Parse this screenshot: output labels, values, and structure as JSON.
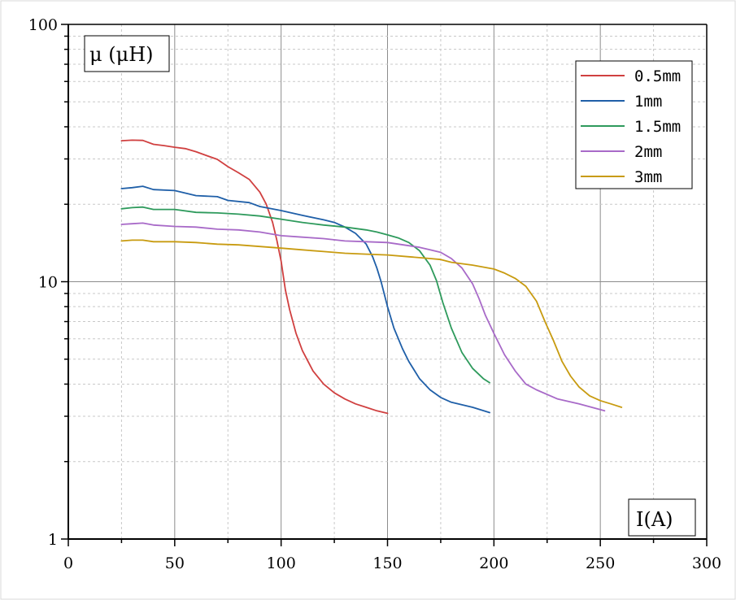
{
  "chart_data": {
    "type": "line",
    "ylabel": "μ (μH)",
    "xlabel": "I(A)",
    "x_scale": "linear",
    "y_scale": "log",
    "xlim": [
      0,
      300
    ],
    "ylim": [
      1,
      100
    ],
    "x_ticks": [
      "0",
      "50",
      "100",
      "150",
      "200",
      "250",
      "300"
    ],
    "y_ticks": [
      "1",
      "10",
      "100"
    ],
    "legend_position": "top-right",
    "grid": true,
    "series": [
      {
        "name": "0.5mm",
        "color": "#d04040",
        "points": [
          [
            25,
            35.3
          ],
          [
            30,
            35.5
          ],
          [
            35,
            35.4
          ],
          [
            40,
            34.2
          ],
          [
            45,
            33.8
          ],
          [
            50,
            33.3
          ],
          [
            55,
            32.9
          ],
          [
            60,
            32.0
          ],
          [
            65,
            30.9
          ],
          [
            70,
            29.9
          ],
          [
            75,
            28.0
          ],
          [
            80,
            26.5
          ],
          [
            85,
            25.0
          ],
          [
            90,
            22.3
          ],
          [
            93,
            20.0
          ],
          [
            96,
            17.0
          ],
          [
            98,
            14.5
          ],
          [
            100,
            12.0
          ],
          [
            102,
            9.3
          ],
          [
            104,
            7.8
          ],
          [
            107,
            6.3
          ],
          [
            110,
            5.4
          ],
          [
            115,
            4.5
          ],
          [
            120,
            4.0
          ],
          [
            125,
            3.7
          ],
          [
            130,
            3.5
          ],
          [
            135,
            3.35
          ],
          [
            140,
            3.25
          ],
          [
            145,
            3.15
          ],
          [
            150,
            3.08
          ]
        ]
      },
      {
        "name": "1mm",
        "color": "#1f5fa8",
        "points": [
          [
            25,
            23.0
          ],
          [
            30,
            23.2
          ],
          [
            35,
            23.5
          ],
          [
            40,
            22.8
          ],
          [
            50,
            22.6
          ],
          [
            60,
            21.6
          ],
          [
            70,
            21.4
          ],
          [
            75,
            20.7
          ],
          [
            85,
            20.3
          ],
          [
            90,
            19.6
          ],
          [
            100,
            18.9
          ],
          [
            110,
            18.1
          ],
          [
            120,
            17.4
          ],
          [
            125,
            17.0
          ],
          [
            130,
            16.3
          ],
          [
            135,
            15.4
          ],
          [
            140,
            14.0
          ],
          [
            143,
            12.5
          ],
          [
            145,
            11.3
          ],
          [
            147,
            10.0
          ],
          [
            150,
            8.0
          ],
          [
            153,
            6.6
          ],
          [
            157,
            5.5
          ],
          [
            160,
            4.9
          ],
          [
            165,
            4.2
          ],
          [
            170,
            3.8
          ],
          [
            175,
            3.55
          ],
          [
            180,
            3.4
          ],
          [
            190,
            3.25
          ],
          [
            198,
            3.1
          ]
        ]
      },
      {
        "name": "1.5mm",
        "color": "#2e9a5c",
        "points": [
          [
            25,
            19.2
          ],
          [
            30,
            19.4
          ],
          [
            35,
            19.5
          ],
          [
            40,
            19.1
          ],
          [
            50,
            19.1
          ],
          [
            60,
            18.6
          ],
          [
            70,
            18.5
          ],
          [
            80,
            18.3
          ],
          [
            90,
            18.0
          ],
          [
            100,
            17.5
          ],
          [
            110,
            17.0
          ],
          [
            120,
            16.6
          ],
          [
            130,
            16.3
          ],
          [
            140,
            15.9
          ],
          [
            145,
            15.6
          ],
          [
            150,
            15.2
          ],
          [
            155,
            14.8
          ],
          [
            160,
            14.2
          ],
          [
            165,
            13.2
          ],
          [
            170,
            11.6
          ],
          [
            173,
            10.1
          ],
          [
            176,
            8.3
          ],
          [
            180,
            6.6
          ],
          [
            185,
            5.3
          ],
          [
            190,
            4.6
          ],
          [
            195,
            4.2
          ],
          [
            198,
            4.05
          ]
        ]
      },
      {
        "name": "2mm",
        "color": "#a86ac8",
        "points": [
          [
            25,
            16.7
          ],
          [
            30,
            16.8
          ],
          [
            35,
            16.9
          ],
          [
            40,
            16.6
          ],
          [
            50,
            16.4
          ],
          [
            60,
            16.3
          ],
          [
            70,
            16.0
          ],
          [
            80,
            15.9
          ],
          [
            90,
            15.6
          ],
          [
            100,
            15.1
          ],
          [
            110,
            14.9
          ],
          [
            120,
            14.7
          ],
          [
            130,
            14.4
          ],
          [
            140,
            14.3
          ],
          [
            150,
            14.2
          ],
          [
            160,
            13.8
          ],
          [
            165,
            13.6
          ],
          [
            170,
            13.3
          ],
          [
            175,
            13.0
          ],
          [
            180,
            12.3
          ],
          [
            185,
            11.3
          ],
          [
            190,
            9.8
          ],
          [
            193,
            8.6
          ],
          [
            196,
            7.4
          ],
          [
            200,
            6.3
          ],
          [
            205,
            5.2
          ],
          [
            210,
            4.5
          ],
          [
            215,
            4.0
          ],
          [
            220,
            3.8
          ],
          [
            230,
            3.5
          ],
          [
            240,
            3.35
          ],
          [
            252,
            3.15
          ]
        ]
      },
      {
        "name": "3mm",
        "color": "#c89b10",
        "points": [
          [
            25,
            14.4
          ],
          [
            30,
            14.5
          ],
          [
            35,
            14.5
          ],
          [
            40,
            14.3
          ],
          [
            50,
            14.3
          ],
          [
            60,
            14.2
          ],
          [
            70,
            14.0
          ],
          [
            80,
            13.9
          ],
          [
            90,
            13.7
          ],
          [
            100,
            13.5
          ],
          [
            110,
            13.3
          ],
          [
            120,
            13.1
          ],
          [
            130,
            12.9
          ],
          [
            140,
            12.8
          ],
          [
            150,
            12.7
          ],
          [
            160,
            12.5
          ],
          [
            170,
            12.3
          ],
          [
            175,
            12.2
          ],
          [
            180,
            11.9
          ],
          [
            190,
            11.6
          ],
          [
            200,
            11.2
          ],
          [
            205,
            10.8
          ],
          [
            210,
            10.3
          ],
          [
            215,
            9.6
          ],
          [
            220,
            8.4
          ],
          [
            224,
            7.0
          ],
          [
            228,
            5.9
          ],
          [
            232,
            4.9
          ],
          [
            236,
            4.3
          ],
          [
            240,
            3.9
          ],
          [
            245,
            3.6
          ],
          [
            250,
            3.45
          ],
          [
            255,
            3.35
          ],
          [
            260,
            3.25
          ]
        ]
      }
    ]
  }
}
